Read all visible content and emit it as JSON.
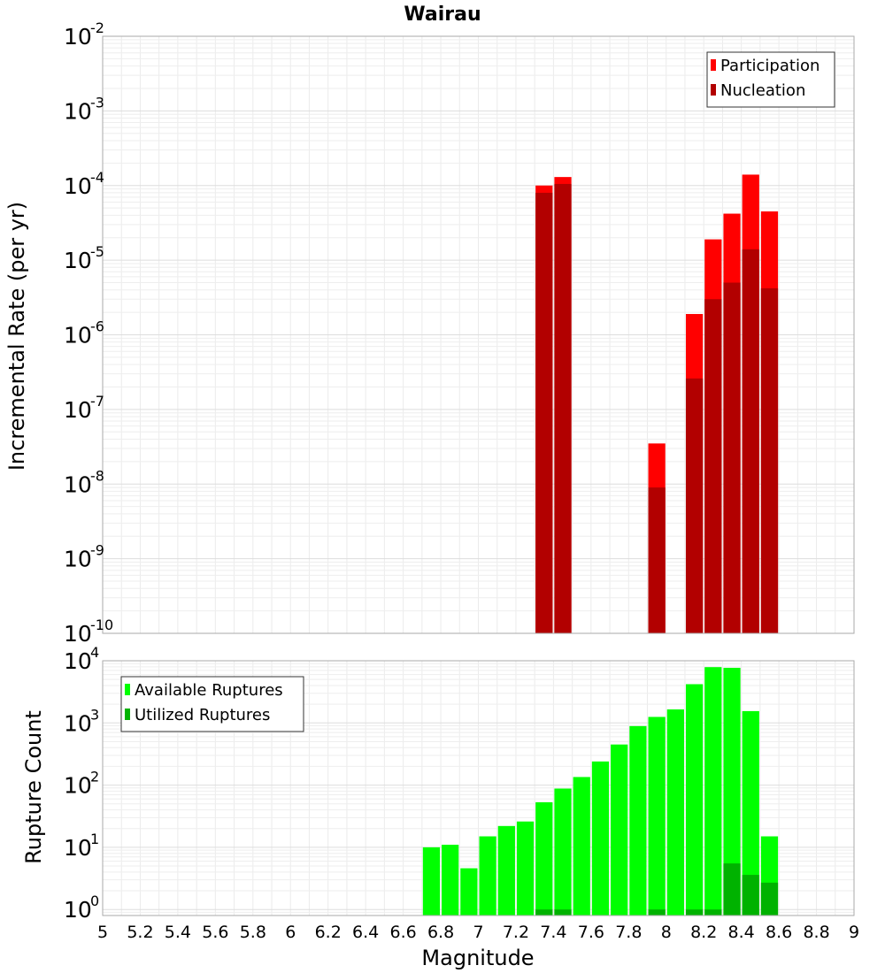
{
  "chart_data": [
    {
      "type": "bar",
      "title": "Wairau",
      "ylabel": "Incremental Rate (per yr)",
      "xlabel": "",
      "y_scale": "log",
      "ylim": [
        1e-10,
        0.01
      ],
      "xlim": [
        5,
        9
      ],
      "bin_width": 0.1,
      "grid": true,
      "legend_position": "top-right",
      "series": [
        {
          "name": "Participation",
          "color": "#ff0000",
          "points": [
            {
              "x": 7.35,
              "y": 0.0001
            },
            {
              "x": 7.45,
              "y": 0.00013
            },
            {
              "x": 7.95,
              "y": 3.5e-08
            },
            {
              "x": 8.15,
              "y": 1.9e-06
            },
            {
              "x": 8.25,
              "y": 1.9e-05
            },
            {
              "x": 8.35,
              "y": 4.2e-05
            },
            {
              "x": 8.45,
              "y": 0.00014
            },
            {
              "x": 8.55,
              "y": 4.5e-05
            }
          ]
        },
        {
          "name": "Nucleation",
          "color": "#b20000",
          "points": [
            {
              "x": 7.35,
              "y": 8e-05
            },
            {
              "x": 7.45,
              "y": 0.000105
            },
            {
              "x": 7.95,
              "y": 9e-09
            },
            {
              "x": 8.15,
              "y": 2.6e-07
            },
            {
              "x": 8.25,
              "y": 3e-06
            },
            {
              "x": 8.35,
              "y": 5e-06
            },
            {
              "x": 8.45,
              "y": 1.4e-05
            },
            {
              "x": 8.55,
              "y": 4.2e-06
            }
          ]
        }
      ]
    },
    {
      "type": "bar",
      "title": "",
      "ylabel": "Rupture Count",
      "xlabel": "Magnitude",
      "y_scale": "log",
      "ylim": [
        0.8,
        10000
      ],
      "xlim": [
        5,
        9
      ],
      "bin_width": 0.1,
      "grid": true,
      "legend_position": "top-left",
      "x_ticks": [
        "5",
        "5.2",
        "5.4",
        "5.6",
        "5.8",
        "6",
        "6.2",
        "6.4",
        "6.6",
        "6.8",
        "7",
        "7.2",
        "7.4",
        "7.6",
        "7.8",
        "8",
        "8.2",
        "8.4",
        "8.6",
        "8.8",
        "9"
      ],
      "series": [
        {
          "name": "Available Ruptures",
          "color": "#00ff00",
          "points": [
            {
              "x": 6.75,
              "y": 10
            },
            {
              "x": 6.85,
              "y": 11
            },
            {
              "x": 6.95,
              "y": 4.6
            },
            {
              "x": 7.05,
              "y": 15
            },
            {
              "x": 7.15,
              "y": 22
            },
            {
              "x": 7.25,
              "y": 26
            },
            {
              "x": 7.35,
              "y": 53
            },
            {
              "x": 7.45,
              "y": 88
            },
            {
              "x": 7.55,
              "y": 135
            },
            {
              "x": 7.65,
              "y": 240
            },
            {
              "x": 7.75,
              "y": 450
            },
            {
              "x": 7.85,
              "y": 890
            },
            {
              "x": 7.95,
              "y": 1250
            },
            {
              "x": 8.05,
              "y": 1650
            },
            {
              "x": 8.15,
              "y": 4200
            },
            {
              "x": 8.25,
              "y": 7900
            },
            {
              "x": 8.35,
              "y": 7700
            },
            {
              "x": 8.45,
              "y": 1550
            },
            {
              "x": 8.55,
              "y": 15
            }
          ]
        },
        {
          "name": "Utilized Ruptures",
          "color": "#00b200",
          "points": [
            {
              "x": 7.35,
              "y": 1
            },
            {
              "x": 7.45,
              "y": 1
            },
            {
              "x": 7.95,
              "y": 1
            },
            {
              "x": 8.15,
              "y": 1
            },
            {
              "x": 8.25,
              "y": 1
            },
            {
              "x": 8.35,
              "y": 5.5
            },
            {
              "x": 8.45,
              "y": 3.6
            },
            {
              "x": 8.55,
              "y": 2.7
            }
          ]
        }
      ]
    }
  ]
}
